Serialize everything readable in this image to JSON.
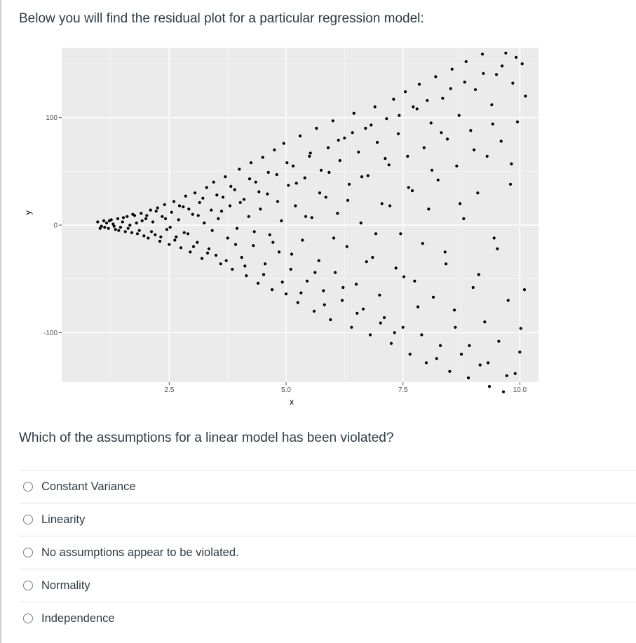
{
  "question": {
    "intro": "Below you will find the residual plot for a particular regression model:",
    "prompt": "Which of the assumptions for a linear model has been violated?"
  },
  "answers": [
    {
      "label": "Constant Variance"
    },
    {
      "label": "Linearity"
    },
    {
      "label": "No assumptions appear to be violated."
    },
    {
      "label": "Normality"
    },
    {
      "label": "Independence"
    }
  ],
  "chart_data": {
    "type": "scatter",
    "title": "",
    "xlabel": "x",
    "ylabel": "y",
    "xlim": [
      0.2,
      10.4
    ],
    "ylim": [
      -146,
      165
    ],
    "x_ticks": [
      2.5,
      5.0,
      7.5,
      10.0
    ],
    "x_tick_labels": [
      "2.5",
      "5.0",
      "7.5",
      "10.0"
    ],
    "y_ticks": [
      -100,
      0,
      100
    ],
    "y_tick_labels": [
      "-100",
      "0",
      "100"
    ],
    "grid": true,
    "panel_color": "#ebebeb",
    "point_color": "#000000",
    "series": [
      {
        "points": [
          [
            0.97,
            3
          ],
          [
            1.05,
            -1
          ],
          [
            1.1,
            4
          ],
          [
            1.16,
            2
          ],
          [
            1.2,
            -3
          ],
          [
            1.26,
            5
          ],
          [
            1.3,
            1
          ],
          [
            1.35,
            -4
          ],
          [
            1.4,
            6
          ],
          [
            1.46,
            -2
          ],
          [
            1.5,
            3
          ],
          [
            1.56,
            -6
          ],
          [
            1.6,
            8
          ],
          [
            1.66,
            0
          ],
          [
            1.7,
            -7
          ],
          [
            1.76,
            9
          ],
          [
            1.8,
            2
          ],
          [
            1.86,
            -5
          ],
          [
            1.9,
            11
          ],
          [
            1.96,
            -10
          ],
          [
            2.0,
            6
          ],
          [
            2.05,
            -12
          ],
          [
            2.1,
            14
          ],
          [
            2.15,
            3
          ],
          [
            2.2,
            -9
          ],
          [
            2.25,
            16
          ],
          [
            2.3,
            -15
          ],
          [
            2.35,
            8
          ],
          [
            2.4,
            19
          ],
          [
            2.45,
            -4
          ],
          [
            2.5,
            -18
          ],
          [
            2.55,
            12
          ],
          [
            2.6,
            22
          ],
          [
            2.65,
            -11
          ],
          [
            2.7,
            5
          ],
          [
            2.75,
            -21
          ],
          [
            2.8,
            17
          ],
          [
            2.85,
            27
          ],
          [
            2.9,
            -8
          ],
          [
            2.95,
            -25
          ],
          [
            3.0,
            10
          ],
          [
            3.05,
            30
          ],
          [
            3.1,
            -16
          ],
          [
            3.15,
            21
          ],
          [
            3.2,
            -31
          ],
          [
            3.25,
            2
          ],
          [
            3.3,
            35
          ],
          [
            3.35,
            -22
          ],
          [
            3.4,
            14
          ],
          [
            3.45,
            40
          ],
          [
            3.5,
            -28
          ],
          [
            3.55,
            6
          ],
          [
            3.6,
            -36
          ],
          [
            3.65,
            26
          ],
          [
            3.7,
            45
          ],
          [
            3.75,
            -12
          ],
          [
            3.8,
            18
          ],
          [
            3.85,
            -41
          ],
          [
            3.9,
            33
          ],
          [
            3.95,
            -3
          ],
          [
            4.0,
            52
          ],
          [
            4.05,
            -30
          ],
          [
            4.1,
            24
          ],
          [
            4.15,
            -47
          ],
          [
            4.2,
            8
          ],
          [
            4.25,
            58
          ],
          [
            4.3,
            -19
          ],
          [
            4.35,
            40
          ],
          [
            4.4,
            -54
          ],
          [
            4.45,
            15
          ],
          [
            4.5,
            63
          ],
          [
            4.55,
            -36
          ],
          [
            4.6,
            29
          ],
          [
            4.65,
            -9
          ],
          [
            4.7,
            -60
          ],
          [
            4.75,
            70
          ],
          [
            4.8,
            47
          ],
          [
            4.85,
            -25
          ],
          [
            4.9,
            4
          ],
          [
            4.95,
            76
          ],
          [
            5.0,
            -64
          ],
          [
            5.05,
            37
          ],
          [
            5.1,
            -41
          ],
          [
            5.15,
            55
          ],
          [
            5.2,
            18
          ],
          [
            5.25,
            -72
          ],
          [
            5.3,
            83
          ],
          [
            5.35,
            -14
          ],
          [
            5.4,
            44
          ],
          [
            5.45,
            -52
          ],
          [
            5.5,
            64
          ],
          [
            5.55,
            7
          ],
          [
            5.6,
            -80
          ],
          [
            5.65,
            90
          ],
          [
            5.7,
            -33
          ],
          [
            5.75,
            51
          ],
          [
            5.8,
            -61
          ],
          [
            5.85,
            26
          ],
          [
            5.9,
            72
          ],
          [
            5.95,
            -88
          ],
          [
            6.0,
            97
          ],
          [
            6.05,
            -44
          ],
          [
            6.1,
            11
          ],
          [
            6.15,
            60
          ],
          [
            6.2,
            -70
          ],
          [
            6.25,
            81
          ],
          [
            6.3,
            -20
          ],
          [
            6.35,
            38
          ],
          [
            6.4,
            -95
          ],
          [
            6.45,
            104
          ],
          [
            6.5,
            -55
          ],
          [
            6.55,
            68
          ],
          [
            6.6,
            2
          ],
          [
            6.65,
            -78
          ],
          [
            6.7,
            90
          ],
          [
            6.75,
            46
          ],
          [
            6.8,
            -102
          ],
          [
            6.85,
            -30
          ],
          [
            6.9,
            110
          ],
          [
            6.95,
            77
          ],
          [
            7.0,
            -65
          ],
          [
            7.05,
            20
          ],
          [
            7.1,
            -86
          ],
          [
            7.15,
            99
          ],
          [
            7.2,
            56
          ],
          [
            7.25,
            -110
          ],
          [
            7.3,
            117
          ],
          [
            7.35,
            -40
          ],
          [
            7.4,
            85
          ],
          [
            7.45,
            -8
          ],
          [
            7.5,
            -95
          ],
          [
            7.55,
            124
          ],
          [
            7.6,
            64
          ],
          [
            7.65,
            -120
          ],
          [
            7.7,
            32
          ],
          [
            7.75,
            -52
          ],
          [
            7.8,
            108
          ],
          [
            7.85,
            131
          ],
          [
            7.9,
            -102
          ],
          [
            7.95,
            72
          ],
          [
            8.0,
            -128
          ],
          [
            8.05,
            15
          ],
          [
            8.1,
            95
          ],
          [
            8.15,
            -67
          ],
          [
            8.2,
            138
          ],
          [
            8.25,
            42
          ],
          [
            8.3,
            -112
          ],
          [
            8.35,
            118
          ],
          [
            8.4,
            -25
          ],
          [
            8.45,
            80
          ],
          [
            8.5,
            -136
          ],
          [
            8.55,
            145
          ],
          [
            8.6,
            -79
          ],
          [
            8.65,
            55
          ],
          [
            8.7,
            102
          ],
          [
            8.75,
            -120
          ],
          [
            8.8,
            6
          ],
          [
            8.85,
            152
          ],
          [
            8.9,
            -142
          ],
          [
            8.95,
            88
          ],
          [
            9.0,
            -58
          ],
          [
            9.05,
            126
          ],
          [
            9.1,
            30
          ],
          [
            9.15,
            -130
          ],
          [
            9.2,
            159
          ],
          [
            9.25,
            -90
          ],
          [
            9.3,
            64
          ],
          [
            9.35,
            -150
          ],
          [
            9.4,
            112
          ],
          [
            9.45,
            -12
          ],
          [
            9.5,
            140
          ],
          [
            9.55,
            -108
          ],
          [
            9.6,
            78
          ],
          [
            9.65,
            -155
          ],
          [
            9.7,
            160
          ],
          [
            9.75,
            -70
          ],
          [
            9.8,
            38
          ],
          [
            9.85,
            132
          ],
          [
            9.9,
            -138
          ],
          [
            9.95,
            96
          ],
          [
            10.0,
            -118
          ],
          [
            10.05,
            150
          ],
          [
            10.1,
            -60
          ],
          [
            1.02,
            -3
          ],
          [
            1.12,
            -2
          ],
          [
            1.22,
            4
          ],
          [
            1.32,
            -1
          ],
          [
            1.42,
            -5
          ],
          [
            1.52,
            7
          ],
          [
            1.62,
            -3
          ],
          [
            1.72,
            10
          ],
          [
            1.82,
            -8
          ],
          [
            1.92,
            4
          ],
          [
            2.02,
            9
          ],
          [
            2.12,
            -6
          ],
          [
            2.22,
            13
          ],
          [
            2.32,
            -11
          ],
          [
            2.42,
            6
          ],
          [
            2.52,
            -2
          ],
          [
            2.62,
            -14
          ],
          [
            2.72,
            18
          ],
          [
            2.82,
            -7
          ],
          [
            2.92,
            15
          ],
          [
            3.02,
            -20
          ],
          [
            3.12,
            9
          ],
          [
            3.22,
            25
          ],
          [
            3.32,
            -26
          ],
          [
            3.42,
            -5
          ],
          [
            3.52,
            28
          ],
          [
            3.62,
            13
          ],
          [
            3.72,
            -33
          ],
          [
            3.82,
            36
          ],
          [
            3.92,
            -18
          ],
          [
            4.02,
            21
          ],
          [
            4.12,
            -38
          ],
          [
            4.22,
            43
          ],
          [
            4.32,
            -6
          ],
          [
            4.42,
            31
          ],
          [
            4.52,
            -46
          ],
          [
            4.62,
            49
          ],
          [
            4.72,
            -16
          ],
          [
            4.82,
            22
          ],
          [
            4.92,
            -53
          ],
          [
            5.02,
            58
          ],
          [
            5.12,
            -27
          ],
          [
            5.22,
            39
          ],
          [
            5.32,
            -63
          ],
          [
            5.42,
            8
          ],
          [
            5.52,
            67
          ],
          [
            5.62,
            -44
          ],
          [
            5.72,
            30
          ],
          [
            5.82,
            -74
          ],
          [
            5.92,
            49
          ],
          [
            6.02,
            -12
          ],
          [
            6.12,
            79
          ],
          [
            6.22,
            -58
          ],
          [
            6.32,
            23
          ],
          [
            6.42,
            86
          ],
          [
            6.52,
            -82
          ],
          [
            6.62,
            45
          ],
          [
            6.72,
            -34
          ],
          [
            6.82,
            93
          ],
          [
            6.92,
            -8
          ],
          [
            7.02,
            -91
          ],
          [
            7.12,
            62
          ],
          [
            7.22,
            18
          ],
          [
            7.32,
            -100
          ],
          [
            7.42,
            102
          ],
          [
            7.52,
            -48
          ],
          [
            7.62,
            35
          ],
          [
            7.72,
            110
          ],
          [
            7.82,
            -76
          ],
          [
            7.92,
            -17
          ],
          [
            8.02,
            116
          ],
          [
            8.12,
            51
          ],
          [
            8.22,
            -124
          ],
          [
            8.32,
            86
          ],
          [
            8.42,
            -36
          ],
          [
            8.52,
            127
          ],
          [
            8.62,
            -95
          ],
          [
            8.72,
            20
          ],
          [
            8.82,
            133
          ],
          [
            8.92,
            -112
          ],
          [
            9.02,
            70
          ],
          [
            9.12,
            -46
          ],
          [
            9.22,
            141
          ],
          [
            9.32,
            -128
          ],
          [
            9.42,
            94
          ],
          [
            9.52,
            -22
          ],
          [
            9.62,
            148
          ],
          [
            9.72,
            -140
          ],
          [
            9.82,
            57
          ],
          [
            9.92,
            156
          ],
          [
            10.02,
            -96
          ],
          [
            10.12,
            120
          ]
        ]
      }
    ]
  }
}
